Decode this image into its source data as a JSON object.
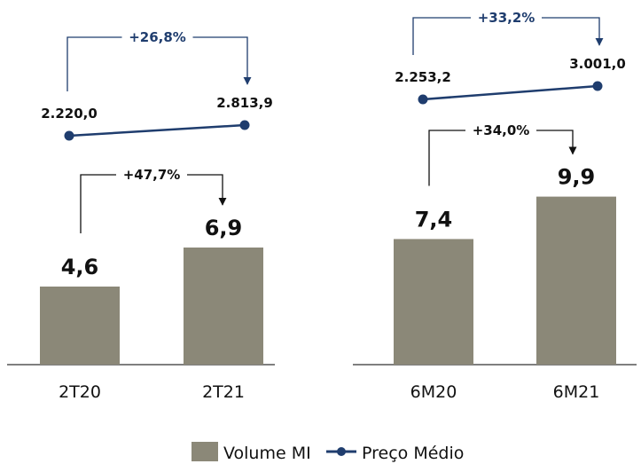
{
  "colors": {
    "bar": "#8b8878",
    "line": "#1f3d6e",
    "arrow_bar": "#111111",
    "arrow_price": "#1f3d6e",
    "axis": "#333333"
  },
  "chart_data": [
    {
      "type": "bar",
      "categories": [
        "2T20",
        "2T21"
      ],
      "series": [
        {
          "name": "Volume MI",
          "type": "bar",
          "values": [
            4.6,
            6.9
          ],
          "labels": [
            "4,6",
            "6,9"
          ]
        },
        {
          "name": "Preço Médio",
          "type": "line",
          "values": [
            2220.0,
            2813.9
          ],
          "labels": [
            "2.220,0",
            "2.813,9"
          ]
        }
      ],
      "growth": {
        "bar": "+47,7%",
        "price": "+26,8%"
      }
    },
    {
      "type": "bar",
      "categories": [
        "6M20",
        "6M21"
      ],
      "series": [
        {
          "name": "Volume MI",
          "type": "bar",
          "values": [
            7.4,
            9.9
          ],
          "labels": [
            "7,4",
            "9,9"
          ]
        },
        {
          "name": "Preço Médio",
          "type": "line",
          "values": [
            2253.2,
            3001.0
          ],
          "labels": [
            "2.253,2",
            "3.001,0"
          ]
        }
      ],
      "growth": {
        "bar": "+34,0%",
        "price": "+33,2%"
      }
    }
  ],
  "legend": {
    "bar_label": "Volume MI",
    "line_label": "Preço Médio"
  }
}
